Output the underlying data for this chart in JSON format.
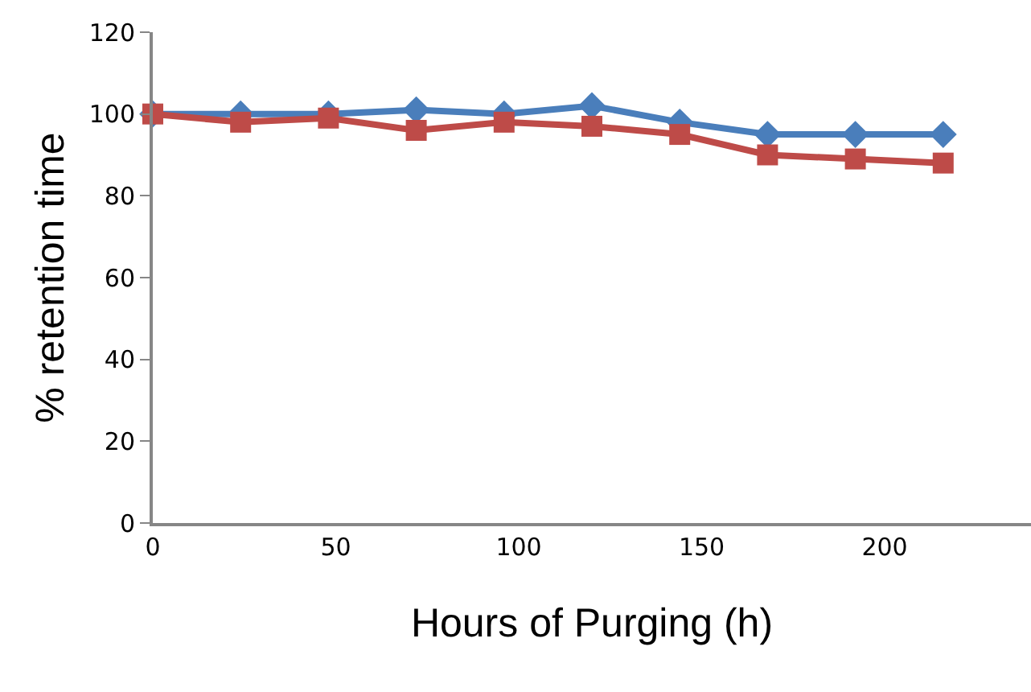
{
  "chart_data": {
    "type": "line",
    "xlabel": "Hours of Purging (h)",
    "ylabel": "% retention time",
    "x": [
      0,
      24,
      48,
      72,
      96,
      120,
      144,
      168,
      192,
      216
    ],
    "series": [
      {
        "color": "#4a7ebb",
        "marker": "diamond",
        "values": [
          100,
          100,
          100,
          101,
          100,
          102,
          98,
          95,
          95,
          95
        ]
      },
      {
        "color": "#be4b48",
        "marker": "square",
        "values": [
          100,
          98,
          99,
          96,
          98,
          97,
          95,
          90,
          89,
          88
        ]
      }
    ],
    "xlim": [
      0,
      240
    ],
    "xticks": [
      0,
      50,
      100,
      150,
      200
    ],
    "ylim": [
      0,
      120
    ],
    "yticks": [
      0,
      20,
      40,
      60,
      80,
      100,
      120
    ],
    "legend": false,
    "line_style": "solid"
  }
}
